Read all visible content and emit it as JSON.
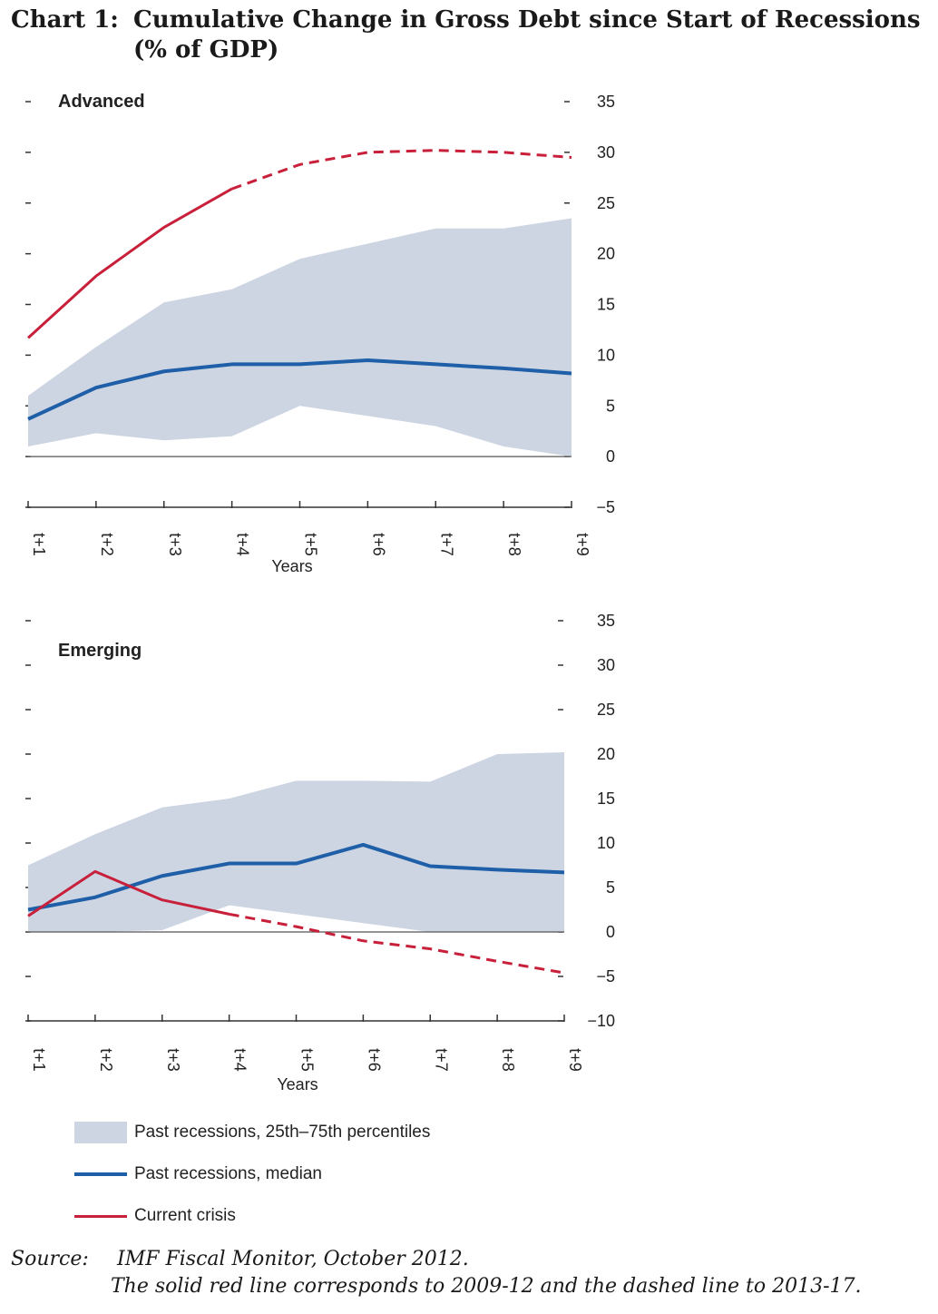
{
  "title": {
    "number": "Chart 1:",
    "line1": "Cumulative Change in Gross Debt since Start of Recessions",
    "line2": "(% of GDP)"
  },
  "colors": {
    "band": "#cdd5e3",
    "median": "#1f5fa8",
    "current": "#c8203a"
  },
  "chart_data": [
    {
      "type": "line",
      "panel": "Advanced",
      "categories": [
        "t+1",
        "t+2",
        "t+3",
        "t+4",
        "t+5",
        "t+6",
        "t+7",
        "t+8",
        "t+9"
      ],
      "xlabel": "Years",
      "ylim": [
        -5,
        35
      ],
      "yticks": [
        35,
        30,
        25,
        20,
        15,
        10,
        5,
        0,
        -5
      ],
      "series": [
        {
          "name": "Past recessions, 25th–75th percentiles",
          "kind": "band",
          "low": [
            1,
            2.3,
            1.6,
            2,
            5,
            4,
            3,
            1,
            0
          ],
          "high": [
            6,
            10.8,
            15.2,
            16.5,
            19.5,
            21,
            22.5,
            22.5,
            23.5
          ]
        },
        {
          "name": "Past recessions, median",
          "kind": "line",
          "values": [
            3.7,
            6.8,
            8.4,
            9.1,
            9.1,
            9.5,
            9.1,
            8.7,
            8.2
          ]
        },
        {
          "name": "Current crisis",
          "kind": "line",
          "values": [
            11.7,
            17.8,
            22.6,
            26.4,
            28.8,
            30,
            30.2,
            30,
            29.5
          ],
          "solid_through_index": 3
        }
      ]
    },
    {
      "type": "line",
      "panel": "Emerging",
      "categories": [
        "t+1",
        "t+2",
        "t+3",
        "t+4",
        "t+5",
        "t+6",
        "t+7",
        "t+8",
        "t+9"
      ],
      "xlabel": "Years",
      "ylim": [
        -10,
        35
      ],
      "yticks": [
        35,
        30,
        25,
        20,
        15,
        10,
        5,
        0,
        -5,
        -10
      ],
      "series": [
        {
          "name": "Past recessions, 25th–75th percentiles",
          "kind": "band",
          "low": [
            0,
            0,
            0.2,
            3,
            2,
            1,
            0,
            0,
            0
          ],
          "high": [
            7.5,
            11,
            14,
            15,
            17,
            17,
            16.9,
            20,
            20.2
          ]
        },
        {
          "name": "Past recessions, median",
          "kind": "line",
          "values": [
            2.5,
            3.9,
            6.3,
            7.7,
            7.7,
            9.8,
            7.4,
            7,
            6.7
          ]
        },
        {
          "name": "Current crisis",
          "kind": "line",
          "values": [
            1.8,
            6.8,
            3.6,
            2,
            0.6,
            -1,
            -1.9,
            -3.3,
            -4.6
          ],
          "solid_through_index": 3
        }
      ]
    }
  ],
  "legend": {
    "band": "Past recessions, 25th–75th  percentiles",
    "median": "Past recessions, median",
    "current": "Current crisis"
  },
  "source": {
    "label": "Source:",
    "line1": "IMF Fiscal Monitor, October 2012.",
    "line2": "The solid red line corresponds to 2009-12 and the dashed line to 2013-17."
  }
}
